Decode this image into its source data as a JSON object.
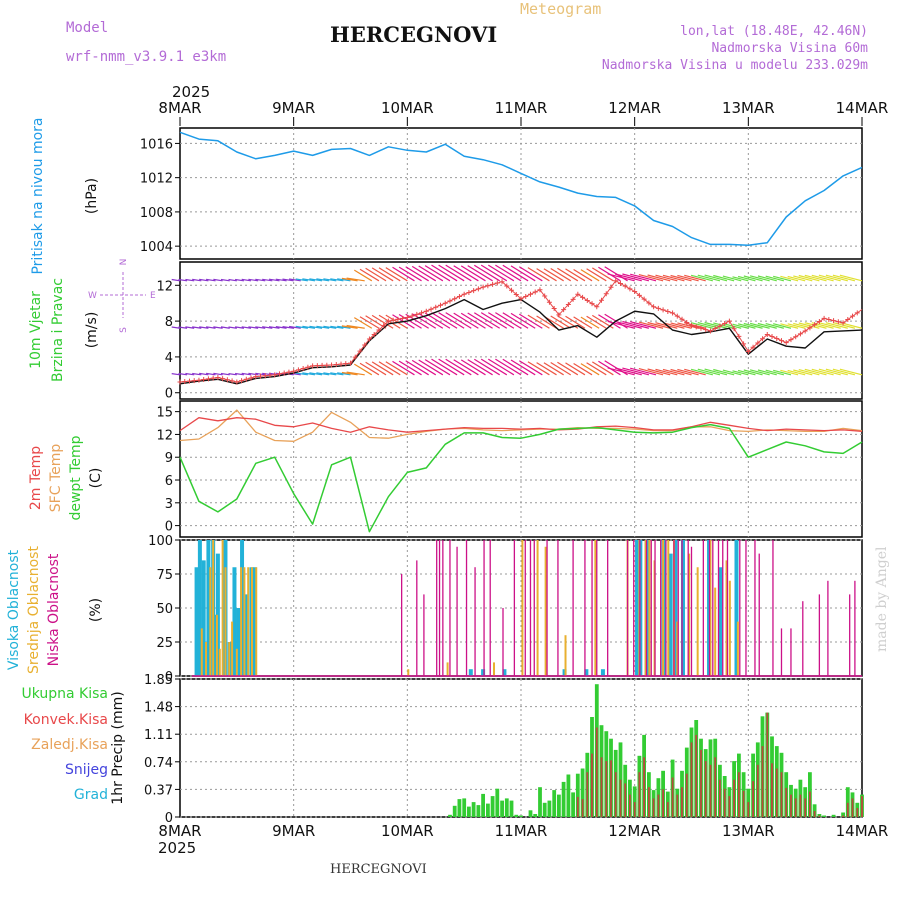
{
  "header": {
    "model_label": "Model",
    "model_name": "wrf-nmm_v3.9.1 e3km",
    "product": "Meteogram",
    "location": "HERCEGNOVI",
    "coords": "lon,lat (18.48E, 42.46N)",
    "elevation": "Nadmorska Visina 60m",
    "model_elevation": "Nadmorska Visina u modelu 233.029m"
  },
  "footer": {
    "location": "HERCEGNOVI",
    "year": "2025",
    "made_by": "made by Angel"
  },
  "colors": {
    "pressure": "#1e9be8",
    "red": "#e8484a",
    "orange": "#e8a25a",
    "green": "#33cc33",
    "cyan": "#22b2d8",
    "yellow": "#e8b030",
    "magenta": "#cc1188",
    "blue": "#4444dd",
    "purple": "#b36bd6"
  },
  "time_axis": {
    "year": "2025",
    "labels": [
      "8MAR",
      "9MAR",
      "10MAR",
      "11MAR",
      "12MAR",
      "13MAR",
      "14MAR"
    ]
  },
  "chart_data": [
    {
      "type": "line",
      "id": "pressure",
      "ylabel_lines": [
        "Pritisak na nivou mora",
        "(hPa)"
      ],
      "yticks": [
        1004,
        1008,
        1012,
        1016
      ],
      "ylim": [
        1002.5,
        1017.8
      ],
      "x": [
        0,
        4,
        8,
        12,
        16,
        20,
        24,
        28,
        32,
        36,
        40,
        44,
        48,
        52,
        56,
        60,
        64,
        68,
        72,
        76,
        80,
        84,
        88,
        92,
        96,
        100,
        104,
        108,
        112,
        116,
        120,
        124,
        128,
        132,
        136,
        140,
        144
      ],
      "values": [
        1017.3,
        1016.5,
        1016.3,
        1015.0,
        1014.2,
        1014.6,
        1015.1,
        1014.6,
        1015.3,
        1015.4,
        1014.6,
        1015.6,
        1015.2,
        1015.0,
        1015.9,
        1014.5,
        1014.1,
        1013.5,
        1012.5,
        1011.5,
        1010.9,
        1010.2,
        1009.8,
        1009.7,
        1008.7,
        1007.0,
        1006.3,
        1005.0,
        1004.2,
        1004.2,
        1004.1,
        1004.4,
        1007.4,
        1009.3,
        1010.5,
        1012.2,
        1013.2
      ]
    },
    {
      "type": "line",
      "id": "wind",
      "ylabel_lines": [
        "10m Vjetar",
        "Brzina i Pravac",
        "(m/s)"
      ],
      "compass": [
        "W",
        "E",
        "N",
        "S"
      ],
      "yticks": [
        0,
        4,
        8,
        12
      ],
      "ylim": [
        -0.7,
        14.6
      ],
      "x": [
        0,
        4,
        8,
        12,
        16,
        20,
        24,
        28,
        32,
        36,
        40,
        44,
        48,
        52,
        56,
        60,
        64,
        68,
        72,
        76,
        80,
        84,
        88,
        92,
        96,
        100,
        104,
        108,
        112,
        116,
        120,
        124,
        128,
        132,
        136,
        140,
        144
      ],
      "series": [
        {
          "name": "wind speed",
          "values": [
            1.0,
            1.3,
            1.5,
            1.0,
            1.6,
            1.8,
            2.2,
            2.8,
            2.9,
            3.1,
            5.8,
            7.7,
            8.0,
            8.6,
            9.4,
            10.4,
            9.3,
            10.0,
            10.4,
            9.0,
            7.0,
            7.5,
            6.2,
            8.0,
            9.1,
            8.8,
            7.0,
            6.5,
            6.8,
            7.2,
            4.3,
            6.0,
            5.2,
            5.0,
            6.8,
            6.9,
            7.0
          ]
        },
        {
          "name": "gusts",
          "values": [
            1.2,
            1.4,
            1.7,
            1.2,
            1.8,
            2.0,
            2.4,
            3.0,
            3.1,
            3.3,
            6.0,
            8.0,
            8.4,
            9.1,
            10.0,
            11.0,
            11.8,
            12.4,
            10.5,
            11.5,
            8.7,
            11.0,
            9.6,
            12.5,
            11.3,
            9.6,
            8.9,
            7.5,
            6.9,
            8.0,
            4.6,
            6.5,
            5.6,
            6.9,
            8.3,
            7.8,
            9.3
          ]
        }
      ],
      "barb_rows_ms": [
        12.5,
        7.2,
        2.0
      ]
    },
    {
      "type": "line",
      "id": "temperature",
      "ylabel_lines": [
        "2m Temp",
        "SFC Temp",
        "dewpt Temp",
        "(C)"
      ],
      "yticks": [
        0,
        3,
        6,
        9,
        12,
        15
      ],
      "ylim": [
        -1.5,
        16.4
      ],
      "x": [
        0,
        4,
        8,
        12,
        16,
        20,
        24,
        28,
        32,
        36,
        40,
        44,
        48,
        52,
        56,
        60,
        64,
        68,
        72,
        76,
        80,
        84,
        88,
        92,
        96,
        100,
        104,
        108,
        112,
        116,
        120,
        124,
        128,
        132,
        136,
        140,
        144
      ],
      "series": [
        {
          "name": "2m Temp",
          "values": [
            12.5,
            14.2,
            13.8,
            14.2,
            14.0,
            13.2,
            13.0,
            13.5,
            12.8,
            12.3,
            13.0,
            12.6,
            12.3,
            12.5,
            12.7,
            12.9,
            12.8,
            12.8,
            12.7,
            12.8,
            12.6,
            12.7,
            13.0,
            13.1,
            12.9,
            12.6,
            12.6,
            13.0,
            13.6,
            13.2,
            12.8,
            12.5,
            12.7,
            12.6,
            12.5,
            12.6,
            12.4
          ]
        },
        {
          "name": "SFC Temp",
          "values": [
            11.2,
            11.4,
            12.9,
            15.2,
            12.3,
            11.2,
            11.1,
            12.3,
            14.9,
            13.6,
            11.6,
            11.5,
            12.0,
            12.4,
            12.7,
            12.8,
            12.6,
            12.5,
            12.6,
            12.7,
            12.7,
            12.9,
            12.8,
            12.8,
            12.7,
            12.5,
            12.5,
            13.0,
            13.0,
            12.5,
            12.4,
            12.6,
            12.5,
            12.4,
            12.4,
            12.8,
            12.5
          ]
        },
        {
          "name": "dewpt Temp",
          "values": [
            9.0,
            3.2,
            1.8,
            3.5,
            8.2,
            9.0,
            4.2,
            0.2,
            8.0,
            9.0,
            -0.8,
            3.8,
            7.0,
            7.6,
            10.7,
            12.2,
            12.2,
            11.6,
            11.5,
            12.0,
            12.7,
            12.8,
            12.9,
            12.6,
            12.3,
            12.2,
            12.3,
            12.9,
            13.3,
            12.8,
            9.0,
            10.0,
            11.0,
            10.5,
            9.7,
            9.5,
            11.0
          ]
        }
      ]
    },
    {
      "type": "bar",
      "id": "cloud_cover",
      "ylabel_lines": [
        "Visoka Oblacnost",
        "Srednja Oblacnost",
        "Niska Oblacnost",
        "(%)"
      ],
      "yticks": [
        0,
        25,
        50,
        75,
        100
      ],
      "ylim": [
        0,
        100
      ],
      "series": [
        {
          "name": "Visoka Oblacnost",
          "x": [
            3.5,
            4.2,
            5.0,
            6.0,
            7.0,
            7.5,
            8.0,
            9.6,
            10.5,
            11.5,
            12.3,
            13.1,
            14.0,
            15.1,
            15.8,
            61.4,
            64.0,
            68.5,
            81.2,
            85.8,
            89.3,
            96.5,
            97.2,
            98.5,
            102.1,
            103.6,
            104.6,
            106.2,
            111.7,
            114.1,
            117.5
          ],
          "values": [
            80,
            100,
            85,
            100,
            100,
            45,
            90,
            100,
            25,
            80,
            50,
            100,
            60,
            80,
            80,
            5,
            5,
            5,
            5,
            5,
            5,
            100,
            100,
            100,
            100,
            90,
            100,
            100,
            100,
            80,
            100
          ]
        },
        {
          "name": "Srednja Oblacnost",
          "x": [
            4.6,
            5.5,
            6.4,
            7.0,
            7.8,
            8.4,
            9.0,
            9.6,
            10.4,
            11.0,
            12.0,
            12.9,
            13.6,
            14.4,
            15.2,
            16.1,
            48.2,
            56.5,
            66.3,
            72.3,
            75.5,
            77.2,
            81.4,
            87.7,
            94.5,
            97.0,
            98.3,
            99.1,
            100.2,
            102.0,
            103.1,
            104.3,
            105.0,
            107.5,
            109.3,
            112.0,
            113.0,
            115.4,
            116.1,
            117.8
          ],
          "values": [
            35,
            25,
            80,
            100,
            45,
            20,
            100,
            80,
            25,
            40,
            20,
            80,
            80,
            80,
            80,
            80,
            5,
            10,
            10,
            100,
            100,
            95,
            30,
            100,
            100,
            100,
            100,
            100,
            85,
            100,
            100,
            100,
            40,
            90,
            80,
            100,
            65,
            85,
            70,
            40
          ]
        },
        {
          "name": "Niska Oblacnost",
          "x": [
            46.8,
            50.0,
            51.5,
            54.2,
            54.8,
            55.5,
            57.0,
            58.5,
            60.5,
            62.3,
            64.2,
            65.5,
            68.2,
            70.6,
            72.9,
            74.0,
            74.8,
            77.5,
            79.8,
            83.0,
            85.5,
            87.0,
            88.0,
            90.3,
            94.5,
            95.8,
            97.1,
            98.5,
            99.5,
            100.3,
            101.5,
            102.6,
            104.3,
            105.2,
            106.0,
            107.3,
            108.0,
            110.5,
            111.8,
            112.5,
            113.7,
            114.6,
            115.6,
            118.2,
            119.5,
            121.4,
            122.3,
            125.2,
            127.0,
            129.0,
            131.5,
            135.0,
            136.8,
            141.4,
            142.5
          ],
          "values": [
            75,
            85,
            60,
            100,
            100,
            100,
            100,
            95,
            100,
            80,
            100,
            100,
            50,
            100,
            100,
            100,
            100,
            100,
            100,
            100,
            100,
            100,
            100,
            100,
            100,
            100,
            100,
            100,
            100,
            100,
            100,
            100,
            100,
            100,
            100,
            100,
            95,
            100,
            100,
            100,
            100,
            100,
            100,
            100,
            100,
            100,
            90,
            100,
            35,
            35,
            55,
            60,
            70,
            60,
            70
          ]
        }
      ]
    },
    {
      "type": "bar",
      "id": "precip",
      "ylabel_lines": [
        "1hr Precip (mm)"
      ],
      "legend": [
        "Ukupna Kisa",
        "Konvek.Kisa",
        "Zaledj.Kisa",
        "Snijeg",
        "Grad"
      ],
      "yticks": [
        0,
        0.37,
        0.74,
        1.11,
        1.48,
        1.85
      ],
      "ylim": [
        0,
        1.85
      ],
      "x": [
        57,
        58,
        59,
        60,
        61,
        62,
        63,
        64,
        65,
        66,
        67,
        68,
        69,
        70,
        71,
        72,
        73,
        74,
        75,
        76,
        77,
        78,
        79,
        80,
        81,
        82,
        83,
        84,
        85,
        86,
        87,
        88,
        89,
        90,
        91,
        92,
        93,
        94,
        95,
        96,
        97,
        98,
        99,
        100,
        101,
        102,
        103,
        104,
        105,
        106,
        107,
        108,
        109,
        110,
        111,
        112,
        113,
        114,
        115,
        116,
        117,
        118,
        119,
        120,
        121,
        122,
        123,
        124,
        125,
        126,
        127,
        128,
        129,
        130,
        131,
        132,
        133,
        134,
        135,
        136,
        137,
        138,
        139,
        140,
        141,
        142,
        143,
        144
      ],
      "series": [
        {
          "name": "Ukupna Kisa",
          "values": [
            0.03,
            0.15,
            0.24,
            0.25,
            0.14,
            0.2,
            0.16,
            0.31,
            0.18,
            0.28,
            0.38,
            0.22,
            0.25,
            0.22,
            0.03,
            0.02,
            0.0,
            0.09,
            0.04,
            0.4,
            0.19,
            0.22,
            0.36,
            0.3,
            0.47,
            0.57,
            0.33,
            0.58,
            0.65,
            0.86,
            1.34,
            1.78,
            1.23,
            1.15,
            1.05,
            0.9,
            1.0,
            0.7,
            0.5,
            0.41,
            0.82,
            1.1,
            0.6,
            0.36,
            0.52,
            0.62,
            0.34,
            0.77,
            0.38,
            0.62,
            0.93,
            1.2,
            1.3,
            1.05,
            0.91,
            1.04,
            1.05,
            0.7,
            0.55,
            0.4,
            0.75,
            0.85,
            0.6,
            0.38,
            0.85,
            1.0,
            1.35,
            1.4,
            1.08,
            0.95,
            0.86,
            0.6,
            0.43,
            0.38,
            0.5,
            0.4,
            0.6,
            0.17,
            0.04,
            0.02,
            0.0,
            0.03,
            0.0,
            0.06,
            0.4,
            0.33,
            0.19,
            0.3
          ]
        },
        {
          "name": "Konvek.Kisa",
          "values": [
            0.0,
            0.0,
            0.0,
            0.0,
            0.0,
            0.0,
            0.0,
            0.0,
            0.0,
            0.0,
            0.0,
            0.0,
            0.0,
            0.0,
            0.0,
            0.0,
            0.0,
            0.0,
            0.0,
            0.0,
            0.0,
            0.0,
            0.0,
            0.0,
            0.0,
            0.0,
            0.0,
            0.27,
            0.24,
            0.6,
            0.85,
            1.2,
            0.8,
            0.75,
            0.76,
            0.6,
            0.5,
            0.45,
            0.3,
            0.2,
            0.6,
            0.8,
            0.4,
            0.25,
            0.3,
            0.37,
            0.2,
            0.53,
            0.3,
            0.4,
            0.58,
            1.0,
            1.1,
            0.9,
            0.75,
            0.7,
            0.8,
            0.5,
            0.38,
            0.28,
            0.5,
            0.6,
            0.35,
            0.2,
            0.48,
            0.7,
            0.95,
            1.4,
            0.72,
            0.65,
            0.6,
            0.39,
            0.3,
            0.25,
            0.3,
            0.25,
            0.34,
            0.08,
            0.02,
            0.0,
            0.0,
            0.0,
            0.0,
            0.02,
            0.19,
            0.25,
            0.12,
            0.28
          ]
        }
      ]
    }
  ]
}
